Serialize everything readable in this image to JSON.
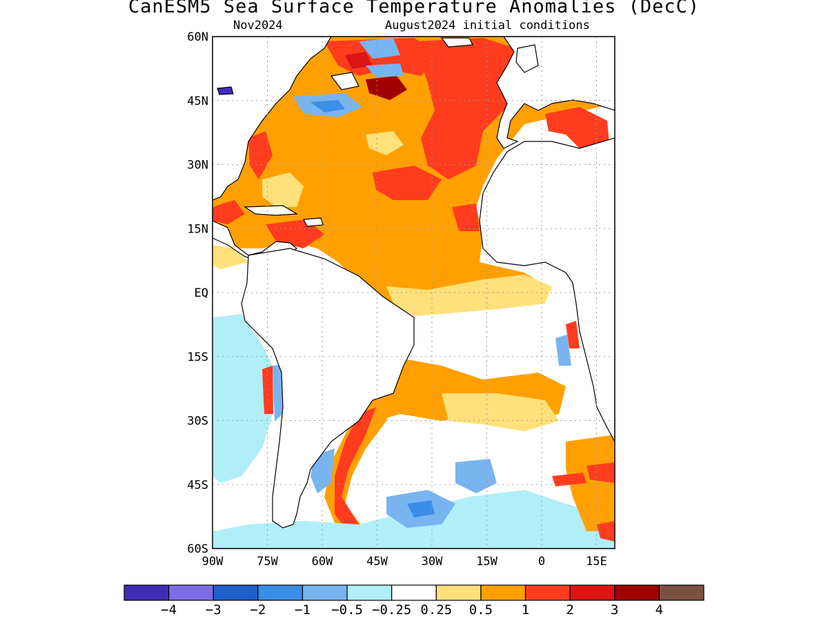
{
  "title": "CanESM5 Sea Surface Temperature Anomalies (DecC)",
  "subtitle_left": "Nov2024",
  "subtitle_right": "August2024 initial conditions",
  "map": {
    "lon_range": [
      -90,
      20
    ],
    "lat_range": [
      -60,
      60
    ],
    "lat_ticks": [
      "60N",
      "45N",
      "30N",
      "15N",
      "EQ",
      "15S",
      "30S",
      "45S",
      "60S"
    ],
    "lon_ticks": [
      "90W",
      "75W",
      "60W",
      "45W",
      "30W",
      "15W",
      "0",
      "15E"
    ],
    "grid": "dotted"
  },
  "colorbar": {
    "labels": [
      "-4",
      "-3",
      "-2",
      "-1",
      "-0.5",
      "-0.25",
      "0.25",
      "0.5",
      "1",
      "2",
      "3",
      "4"
    ],
    "colors": [
      "#3f2db8",
      "#7c6ce8",
      "#1f5fcc",
      "#3a8ee8",
      "#78b4f0",
      "#b0eef8",
      "#ffffff",
      "#ffe07a",
      "#ffa000",
      "#ff3c1e",
      "#dd1414",
      "#a00000",
      "#7a5040"
    ]
  },
  "colors": {
    "land": "#ffffff",
    "anom_pos_light": "#ffe07a",
    "anom_pos_mid": "#ffa000",
    "anom_pos_high": "#ff3c1e",
    "anom_pos_vhigh": "#dd1414",
    "anom_pos_ext": "#a00000",
    "anom_neg_light": "#b0eef8",
    "anom_neg_mid": "#78b4f0",
    "anom_neg_high": "#3a8ee8",
    "anom_neg_vhigh": "#1f5fcc"
  }
}
